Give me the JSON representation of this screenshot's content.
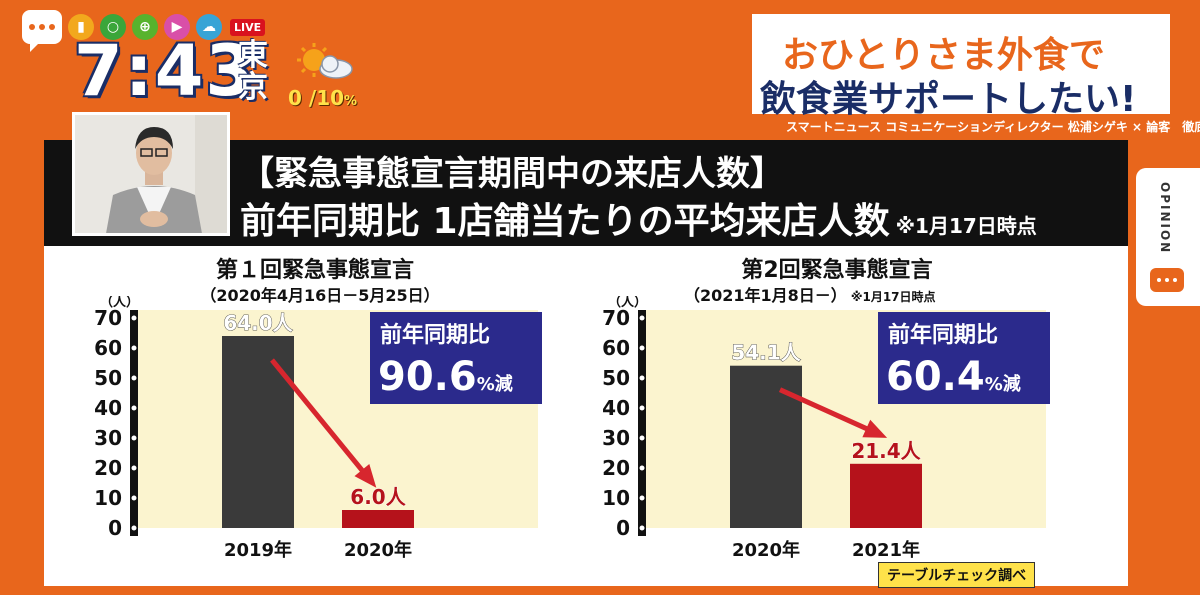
{
  "top_bar": {
    "icons": [
      {
        "name": "bookmark-icon",
        "color": "#f2a81d"
      },
      {
        "name": "search-icon",
        "color": "#3aa63a"
      },
      {
        "name": "globe-icon",
        "color": "#58b32d"
      },
      {
        "name": "play-icon",
        "color": "#d94fa8"
      },
      {
        "name": "cloud-icon",
        "color": "#37a4d6"
      }
    ],
    "live_label": "LIVE",
    "time": "7:43",
    "city": "東京",
    "weather": {
      "value": "0",
      "separator": "/",
      "pct": "10",
      "unit": "%"
    }
  },
  "headline": {
    "line1": "おひとりさま外食で",
    "line2": "飲食業サポートしたい!",
    "caption": "スマートニュース コミュニケーションディレクター 松浦シゲキ × 論客　徹底討論"
  },
  "opinion_tab": {
    "label": "OPINION"
  },
  "banner": {
    "title1": "【緊急事態宣言期間中の来店人数】",
    "title2": "前年同期比 1店舗当たりの平均来店人数",
    "note": "※1月17日時点"
  },
  "colors": {
    "orange": "#e8661c",
    "navy": "#1a2d66",
    "bar_dark": "#3a3a3a",
    "bar_red": "#b5121b",
    "plot_bg": "#fbf4cf",
    "box_blue": "#2b2a8c",
    "arrow": "#d7262e"
  },
  "chart_data": [
    {
      "type": "bar",
      "title": "第１回緊急事態宣言",
      "subtitle": "（2020年4月16日－5月25日）",
      "ylabel": "（人）",
      "ylim": [
        0,
        70
      ],
      "yticks": [
        "70",
        "60",
        "50",
        "40",
        "30",
        "20",
        "10",
        "0"
      ],
      "categories": [
        "2019年",
        "2020年"
      ],
      "values": [
        64.0,
        6.0
      ],
      "value_labels": [
        "64.0人",
        "6.0人"
      ],
      "callout": {
        "label": "前年同期比",
        "value": "90.6",
        "suffix": "%減"
      }
    },
    {
      "type": "bar",
      "title": "第2回緊急事態宣言",
      "subtitle": "（2021年1月8日－）",
      "subtitle_note": "※1月17日時点",
      "ylabel": "（人）",
      "ylim": [
        0,
        70
      ],
      "yticks": [
        "70",
        "60",
        "50",
        "40",
        "30",
        "20",
        "10",
        "0"
      ],
      "categories": [
        "2020年",
        "2021年"
      ],
      "values": [
        54.1,
        21.4
      ],
      "value_labels": [
        "54.1人",
        "21.4人"
      ],
      "callout": {
        "label": "前年同期比",
        "value": "60.4",
        "suffix": "%減"
      }
    }
  ],
  "source": "テーブルチェック調べ"
}
